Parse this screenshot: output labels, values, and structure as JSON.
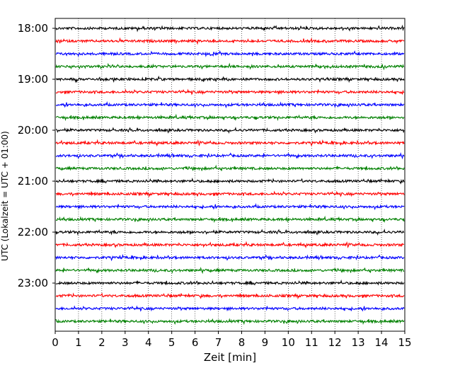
{
  "chart_data": {
    "type": "line",
    "title": "",
    "xlabel": "Zeit  [min]",
    "ylabel": "UTC (Lokalzeit = UTC + 01:00)",
    "xlim": [
      0,
      15
    ],
    "x_ticks": [
      "0",
      "1",
      "2",
      "3",
      "4",
      "5",
      "6",
      "7",
      "8",
      "9",
      "10",
      "11",
      "12",
      "13",
      "14",
      "15"
    ],
    "y_tick_labels": [
      "18:00",
      "19:00",
      "20:00",
      "21:00",
      "22:00",
      "23:00"
    ],
    "x_grid": true,
    "grid_style": "dotted",
    "trace_interval_min": 15,
    "start_time": "18:00",
    "colors": [
      "#000000",
      "#ff0000",
      "#0000ff",
      "#008000"
    ],
    "traces": [
      {
        "time": "18:00",
        "color": "#000000"
      },
      {
        "time": "18:15",
        "color": "#ff0000"
      },
      {
        "time": "18:30",
        "color": "#0000ff"
      },
      {
        "time": "18:45",
        "color": "#008000"
      },
      {
        "time": "19:00",
        "color": "#000000"
      },
      {
        "time": "19:15",
        "color": "#ff0000"
      },
      {
        "time": "19:30",
        "color": "#0000ff"
      },
      {
        "time": "19:45",
        "color": "#008000"
      },
      {
        "time": "20:00",
        "color": "#000000"
      },
      {
        "time": "20:15",
        "color": "#ff0000"
      },
      {
        "time": "20:30",
        "color": "#0000ff"
      },
      {
        "time": "20:45",
        "color": "#008000"
      },
      {
        "time": "21:00",
        "color": "#000000"
      },
      {
        "time": "21:15",
        "color": "#ff0000"
      },
      {
        "time": "21:30",
        "color": "#0000ff"
      },
      {
        "time": "21:45",
        "color": "#008000"
      },
      {
        "time": "22:00",
        "color": "#000000"
      },
      {
        "time": "22:15",
        "color": "#ff0000"
      },
      {
        "time": "22:30",
        "color": "#0000ff"
      },
      {
        "time": "22:45",
        "color": "#008000"
      },
      {
        "time": "23:00",
        "color": "#000000"
      },
      {
        "time": "23:15",
        "color": "#ff0000"
      },
      {
        "time": "23:30",
        "color": "#0000ff"
      },
      {
        "time": "23:45",
        "color": "#008000"
      }
    ]
  }
}
